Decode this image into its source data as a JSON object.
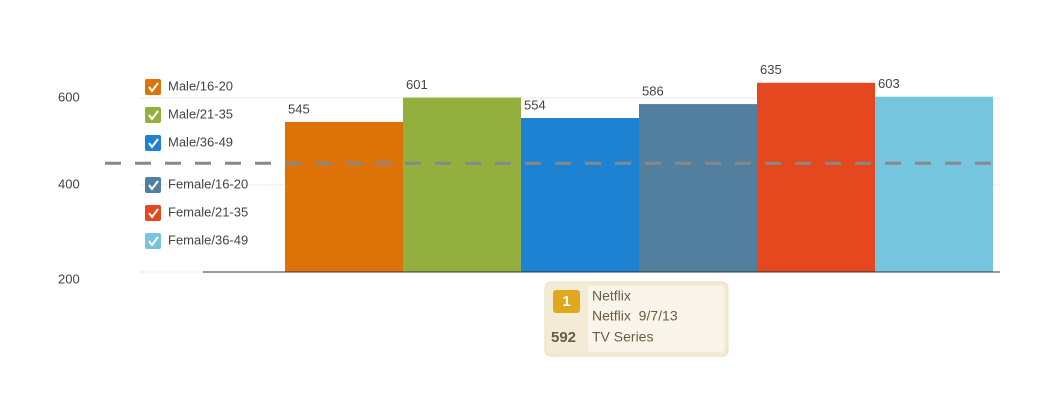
{
  "chart_data": {
    "type": "bar",
    "series": [
      {
        "name": "Male/16-20",
        "color": "#dd7208",
        "values": [
          545
        ]
      },
      {
        "name": "Male/21-35",
        "color": "#93b03e",
        "values": [
          601
        ]
      },
      {
        "name": "Male/36-49",
        "color": "#1e82d2",
        "values": [
          554
        ]
      },
      {
        "name": "Female/16-20",
        "color": "#527f9e",
        "values": [
          586
        ]
      },
      {
        "name": "Female/21-35",
        "color": "#e5471f",
        "values": [
          635
        ]
      },
      {
        "name": "Female/36-49",
        "color": "#76c5df",
        "values": [
          603
        ]
      }
    ],
    "ylim": [
      200,
      700
    ],
    "yticks": [
      200,
      400,
      600
    ],
    "grid": true,
    "reference_line": 450,
    "tooltip": {
      "rank": "1",
      "title": "Netflix",
      "subtitle": "Netflix  9/7/13",
      "value": 592,
      "genre": "TV Series"
    }
  }
}
